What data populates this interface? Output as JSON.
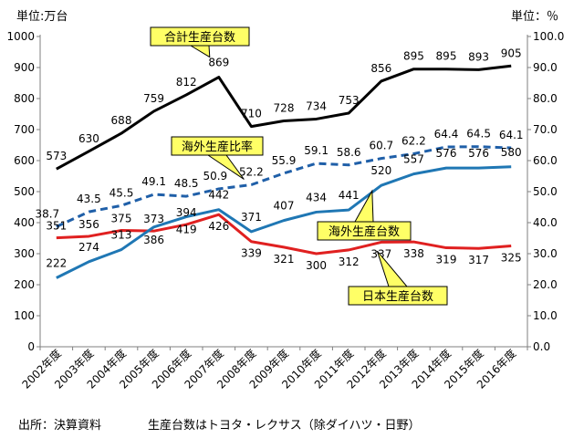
{
  "chart_data": {
    "type": "line",
    "categories": [
      "2002年度",
      "2003年度",
      "2004年度",
      "2005年度",
      "2006年度",
      "2007年度",
      "2008年度",
      "2009年度",
      "2010年度",
      "2011年度",
      "2012年度",
      "2013年度",
      "2014年度",
      "2015年度",
      "2016年度"
    ],
    "left_axis": {
      "label": "単位:万台",
      "ylim": [
        0,
        1000
      ],
      "ticks": [
        "0",
        "100",
        "200",
        "300",
        "400",
        "500",
        "600",
        "700",
        "800",
        "900",
        "1000"
      ]
    },
    "right_axis": {
      "label": "単位：％",
      "ylim": [
        0,
        100
      ],
      "ticks": [
        "0.0",
        "10.0",
        "20.0",
        "30.0",
        "40.0",
        "50.0",
        "60.0",
        "70.0",
        "80.0",
        "90.0",
        "100.0"
      ]
    },
    "grid": false,
    "series": [
      {
        "name": "合計生産台数",
        "axis": "left",
        "color": "#000000",
        "dash": false,
        "values": [
          573,
          630,
          688,
          759,
          812,
          869,
          710,
          728,
          734,
          753,
          856,
          895,
          895,
          893,
          905
        ],
        "labels": [
          "573",
          "630",
          "688",
          "759",
          "812",
          "869",
          "710",
          "728",
          "734",
          "753",
          "856",
          "895",
          "895",
          "893",
          "905"
        ]
      },
      {
        "name": "海外生産比率",
        "axis": "right",
        "color": "#1f5fa8",
        "dash": true,
        "values": [
          38.7,
          43.5,
          45.5,
          49.1,
          48.5,
          50.9,
          52.2,
          55.9,
          59.1,
          58.6,
          60.7,
          62.2,
          64.4,
          64.5,
          64.1
        ],
        "labels": [
          "38.7",
          "43.5",
          "45.5",
          "49.1",
          "48.5",
          "50.9",
          "52.2",
          "55.9",
          "59.1",
          "58.6",
          "60.7",
          "62.2",
          "64.4",
          "64.5",
          "64.1"
        ]
      },
      {
        "name": "海外生産台数",
        "axis": "left",
        "color": "#1f77b4",
        "dash": false,
        "values": [
          222,
          274,
          313,
          386,
          419,
          442,
          371,
          407,
          434,
          441,
          520,
          557,
          576,
          576,
          580
        ],
        "labels": [
          "222",
          "274",
          "313",
          "386",
          "419",
          "442",
          "371",
          "407",
          "434",
          "441",
          "520",
          "557",
          "576",
          "576",
          "580"
        ]
      },
      {
        "name": "日本生産台数",
        "axis": "left",
        "color": "#e02020",
        "dash": false,
        "values": [
          351,
          356,
          375,
          373,
          394,
          426,
          339,
          321,
          300,
          312,
          337,
          338,
          319,
          317,
          325
        ],
        "labels": [
          "351",
          "356",
          "375",
          "373",
          "394",
          "426",
          "339",
          "321",
          "300",
          "312",
          "337",
          "338",
          "319",
          "317",
          "325"
        ]
      }
    ]
  },
  "footer": {
    "source": "出所：決算資料",
    "note": "生産台数はトヨタ・レクサス（除ダイハツ・日野）"
  }
}
